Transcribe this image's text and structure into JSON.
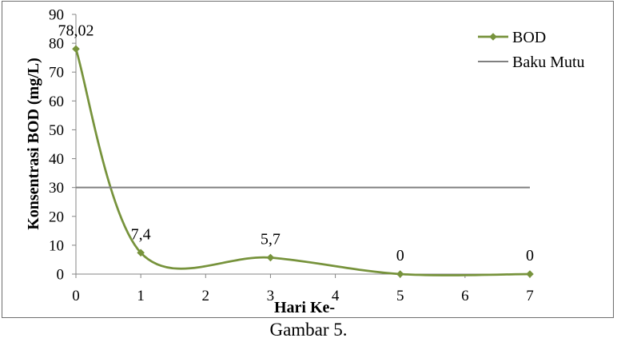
{
  "chart_data": {
    "type": "line",
    "xlabel": "Hari Ke-",
    "ylabel": "Konsentrasi BOD (mg/L)",
    "xlim": [
      0,
      7
    ],
    "ylim": [
      0,
      90
    ],
    "x_ticks": [
      0,
      1,
      2,
      3,
      4,
      5,
      6,
      7
    ],
    "y_ticks": [
      0,
      10,
      20,
      30,
      40,
      50,
      60,
      70,
      80,
      90
    ],
    "grid": false,
    "legend": "top-right",
    "series": [
      {
        "name": "BOD",
        "x": [
          0,
          1,
          3,
          5,
          7
        ],
        "y": [
          78.02,
          7.4,
          5.7,
          0,
          0
        ],
        "data_labels": [
          "78,02",
          "7,4",
          "5,7",
          "0",
          "0"
        ],
        "color": "#77933C",
        "marker": "diamond",
        "smooth": true
      },
      {
        "name": "Baku Mutu",
        "x": [
          0,
          7
        ],
        "y": [
          30,
          30
        ],
        "color": "#808080",
        "marker": "none",
        "smooth": false
      }
    ]
  },
  "caption": "Gambar 5."
}
